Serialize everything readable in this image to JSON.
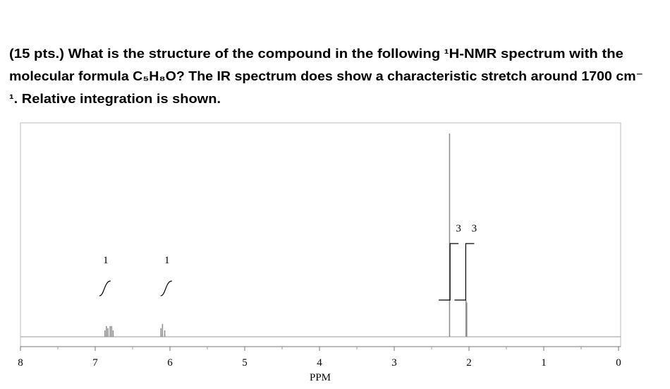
{
  "question": {
    "lines": [
      "(15 pts.) What is the structure of the compound in the following ¹H-NMR spectrum with the",
      "molecular formula C₅H₈O? The IR spectrum does show a characteristic stretch around 1700 cm⁻",
      "¹. Relative integration is shown."
    ]
  },
  "chart_data": {
    "type": "nmr",
    "xlabel": "PPM",
    "xlim": [
      8,
      0
    ],
    "xticks": [
      8,
      7,
      6,
      5,
      4,
      3,
      2,
      1,
      0
    ],
    "ylim": [
      0,
      100
    ],
    "color": "#8c8c8c",
    "x": [
      6.87,
      6.85,
      6.83,
      6.8,
      6.78,
      6.76,
      6.12,
      6.1,
      6.07,
      2.26,
      2.04,
      2.03
    ],
    "values": [
      3,
      5,
      4,
      5,
      5,
      3,
      4,
      6,
      3,
      95,
      17,
      16
    ],
    "integrals": {
      "x": [
        6.86,
        6.04,
        2.14,
        1.93
      ],
      "values": [
        1,
        1,
        3,
        3
      ]
    }
  }
}
